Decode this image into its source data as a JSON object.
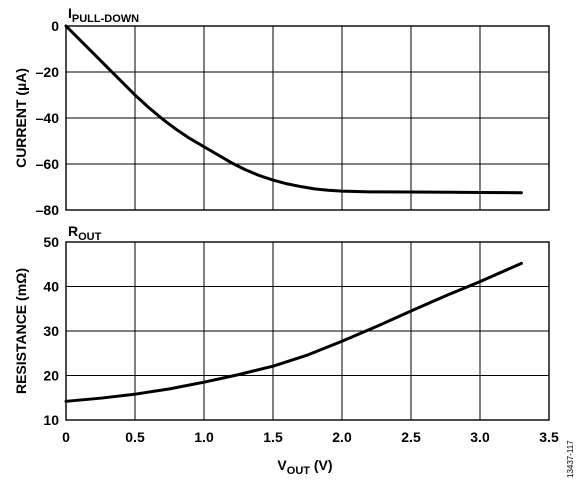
{
  "chart_data": [
    {
      "type": "line",
      "panel_label": "I",
      "panel_label_sub": "PULL-DOWN",
      "ylabel": "CURRENT (µA)",
      "xlim": [
        0,
        3.5
      ],
      "ylim": [
        -80,
        0
      ],
      "xticks": [
        0,
        0.5,
        1.0,
        1.5,
        2.0,
        2.5,
        3.0,
        3.5
      ],
      "yticks": [
        0,
        -20,
        -40,
        -60,
        -80
      ],
      "ytick_labels": [
        "0",
        "–20",
        "–40",
        "–60",
        "–80"
      ],
      "grid": true,
      "series": [
        {
          "x": [
            0,
            0.1,
            0.2,
            0.3,
            0.4,
            0.5,
            0.6,
            0.7,
            0.8,
            0.9,
            1.0,
            1.1,
            1.2,
            1.3,
            1.4,
            1.5,
            1.6,
            1.7,
            1.8,
            1.9,
            2.0,
            2.2,
            2.5,
            2.8,
            3.0,
            3.3
          ],
          "y": [
            0,
            -6,
            -12,
            -18,
            -24,
            -30,
            -35.5,
            -40.5,
            -45,
            -49,
            -52.5,
            -56,
            -59.5,
            -62.5,
            -65,
            -67,
            -68.6,
            -69.8,
            -70.8,
            -71.4,
            -71.8,
            -72.1,
            -72.2,
            -72.3,
            -72.4,
            -72.5
          ]
        }
      ]
    },
    {
      "type": "line",
      "panel_label": "R",
      "panel_label_sub": "OUT",
      "ylabel": "RESISTANCE (mΩ)",
      "xlabel": "V",
      "xlabel_sub": "OUT",
      "xlabel_unit": " (V)",
      "xlim": [
        0,
        3.5
      ],
      "ylim": [
        10,
        50
      ],
      "xticks": [
        0,
        0.5,
        1.0,
        1.5,
        2.0,
        2.5,
        3.0,
        3.5
      ],
      "xtick_labels": [
        "0",
        "0.5",
        "1.0",
        "1.5",
        "2.0",
        "2.5",
        "3.0",
        "3.5"
      ],
      "yticks": [
        10,
        20,
        30,
        40,
        50
      ],
      "ytick_labels": [
        "10",
        "20",
        "30",
        "40",
        "50"
      ],
      "grid": true,
      "series": [
        {
          "x": [
            0,
            0.25,
            0.5,
            0.75,
            1.0,
            1.25,
            1.5,
            1.75,
            2.0,
            2.25,
            2.5,
            2.75,
            3.0,
            3.3
          ],
          "y": [
            14.2,
            14.9,
            15.8,
            17.0,
            18.5,
            20.2,
            22.1,
            24.6,
            27.7,
            31.0,
            34.5,
            37.9,
            41.1,
            45.2
          ]
        }
      ]
    }
  ],
  "figure_id": "13437-117"
}
